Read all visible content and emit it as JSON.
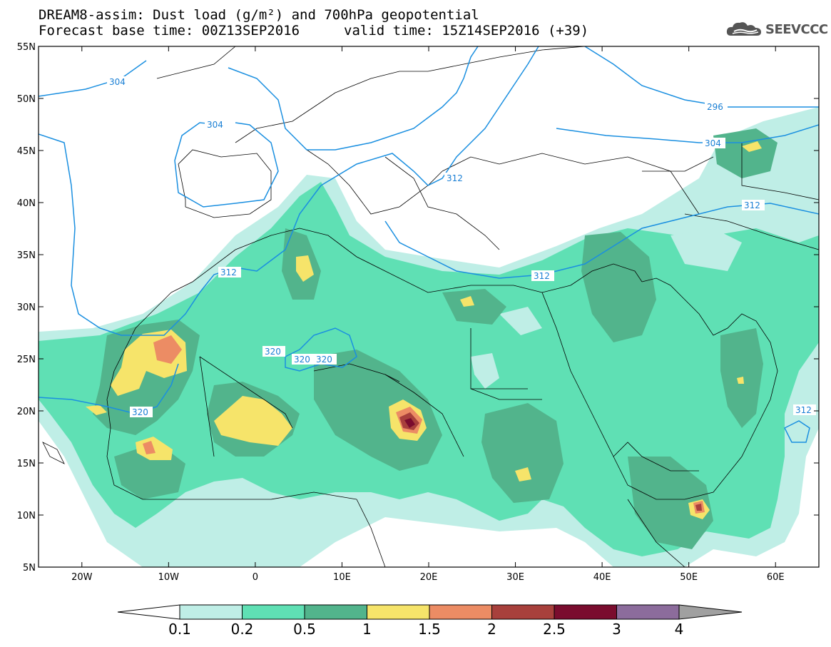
{
  "header": {
    "title_line1": "DREAM8-assim: Dust load (g/m²) and 700hPa geopotential",
    "title_line2_left": "Forecast base time: 00Z13SEP2016",
    "title_line2_right": "valid time: 15Z14SEP2016 (+39)"
  },
  "logo": {
    "text": "SEEVCCC",
    "icon": "cloud-icon"
  },
  "map": {
    "lon_range": [
      -25,
      65
    ],
    "lat_range": [
      5,
      55
    ],
    "lat_labels": [
      "55N",
      "50N",
      "45N",
      "40N",
      "35N",
      "30N",
      "25N",
      "20N",
      "15N",
      "10N",
      "5N"
    ],
    "lon_labels": [
      "20W",
      "10W",
      "0",
      "10E",
      "20E",
      "30E",
      "40E",
      "50E",
      "60E"
    ],
    "contour_labels": [
      "304",
      "304",
      "296",
      "304",
      "312",
      "312",
      "312",
      "312",
      "312",
      "320",
      "320",
      "320",
      "320"
    ],
    "colors": {
      "ocean": "#ffffff",
      "contour": "#1a8fe0",
      "border": "#000000"
    }
  },
  "colorbar": {
    "levels": [
      "0.1",
      "0.2",
      "0.5",
      "1",
      "1.5",
      "2",
      "2.5",
      "3",
      "4"
    ],
    "colors": [
      "#ffffff",
      "#bfeee6",
      "#5fe0b4",
      "#52b48c",
      "#f6e46a",
      "#ec8c64",
      "#a8403c",
      "#7a0c2e",
      "#8c6c9c",
      "#a0a0a0"
    ]
  }
}
